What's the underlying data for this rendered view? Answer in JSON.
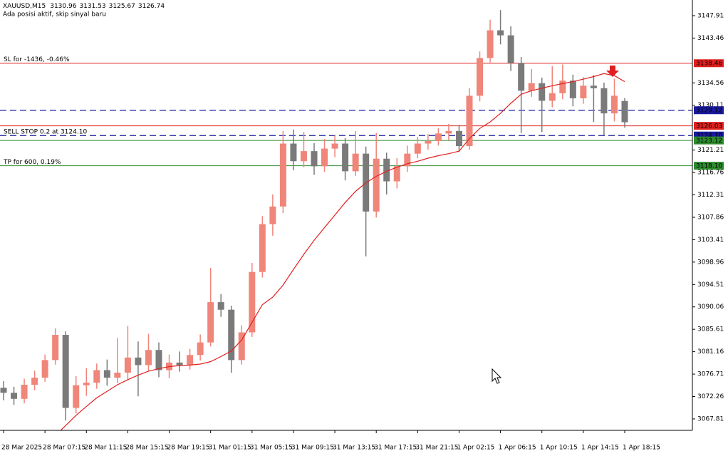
{
  "chart_data": {
    "type": "candlestick",
    "symbol": "XAUUSD,M15",
    "subtitle": "Ada posisi aktif, skip sinyal baru",
    "categories": [
      "28 Mar 2025",
      null,
      null,
      null,
      "28 Mar 07:15",
      null,
      null,
      null,
      "28 Mar 11:15",
      null,
      null,
      null,
      "28 Mar 15:15",
      null,
      null,
      null,
      "28 Mar 19:15",
      null,
      null,
      null,
      "31 Mar 01:15",
      null,
      null,
      null,
      "31 Mar 05:15",
      null,
      null,
      null,
      "31 Mar 09:15",
      null,
      null,
      null,
      "31 Mar 13:15",
      null,
      null,
      null,
      "31 Mar 17:15",
      null,
      null,
      null,
      "31 Mar 21:15",
      null,
      null,
      null,
      "1 Apr 02:15",
      null,
      null,
      null,
      "1 Apr 06:15",
      null,
      null,
      null,
      "1 Apr 10:15",
      null,
      null,
      null,
      "1 Apr 14:15",
      null,
      null,
      null,
      "1 Apr 18:15"
    ],
    "open": [
      3074.0,
      3073.0,
      3071.8,
      3074.6,
      3076.0,
      3079.5,
      3084.5,
      3070.0,
      3074.5,
      3075.0,
      3077.5,
      3076.0,
      3077.0,
      3080.0,
      3078.5,
      3081.5,
      3077.5,
      3079.0,
      3078.5,
      3080.5,
      3083.0,
      3091.0,
      3089.5,
      3079.5,
      3085.0,
      3097.0,
      3106.5,
      3110.0,
      3122.5,
      3119.0,
      3121.0,
      3118.0,
      3121.5,
      3122.5,
      3117.0,
      3120.5,
      3109.0,
      3119.5,
      3115.0,
      3118.0,
      3120.5,
      3122.5,
      3123.0,
      3124.5,
      3125.0,
      3122.0,
      3132.0,
      3139.5,
      3145.0,
      3144.0,
      3138.5,
      3133.0,
      3134.5,
      3131.0,
      3132.5,
      3135.0,
      3131.5,
      3134.0,
      3133.5,
      3128.5,
      3130.96
    ],
    "high": [
      3075.3,
      3074.2,
      3075.8,
      3077.4,
      3080.6,
      3085.8,
      3085.2,
      3076.3,
      3077.9,
      3078.8,
      3079.6,
      3083.9,
      3086.3,
      3083.2,
      3084.7,
      3083.0,
      3080.6,
      3081.2,
      3081.7,
      3084.6,
      3097.8,
      3092.6,
      3090.3,
      3086.4,
      3098.8,
      3108.1,
      3112.4,
      3125.0,
      3125.3,
      3124.8,
      3122.6,
      3123.4,
      3124.1,
      3123.6,
      3125.0,
      3121.9,
      3124.6,
      3120.7,
      3119.6,
      3122.1,
      3123.8,
      3124.4,
      3125.6,
      3126.4,
      3126.2,
      3133.5,
      3140.8,
      3147.1,
      3149.0,
      3145.8,
      3139.7,
      3137.3,
      3135.6,
      3137.9,
      3138.2,
      3136.2,
      3135.7,
      3136.1,
      3134.6,
      3135.4,
      3131.53
    ],
    "low": [
      3071.5,
      3070.6,
      3070.9,
      3073.5,
      3075.2,
      3078.6,
      3067.5,
      3068.9,
      3072.4,
      3073.8,
      3074.4,
      3074.9,
      3075.6,
      3072.3,
      3077.4,
      3076.1,
      3075.9,
      3077.2,
      3077.6,
      3079.4,
      3082.2,
      3088.1,
      3077.0,
      3078.6,
      3084.1,
      3095.9,
      3104.2,
      3108.7,
      3117.2,
      3117.8,
      3116.3,
      3116.9,
      3119.8,
      3115.2,
      3116.1,
      3100.1,
      3107.8,
      3112.4,
      3113.6,
      3116.9,
      3119.6,
      3121.3,
      3122.1,
      3123.2,
      3120.8,
      3121.3,
      3130.9,
      3138.6,
      3142.2,
      3136.9,
      3124.6,
      3131.8,
      3124.8,
      3129.7,
      3131.3,
      3129.9,
      3130.4,
      3126.8,
      3124.2,
      3126.9,
      3125.67
    ],
    "close": [
      3073.0,
      3071.8,
      3074.6,
      3076.0,
      3079.5,
      3084.5,
      3070.0,
      3074.5,
      3075.0,
      3077.5,
      3076.0,
      3077.0,
      3080.0,
      3078.5,
      3081.5,
      3077.5,
      3079.0,
      3078.5,
      3080.5,
      3083.0,
      3091.0,
      3089.5,
      3079.5,
      3085.0,
      3097.0,
      3106.5,
      3110.0,
      3122.5,
      3119.0,
      3121.0,
      3118.0,
      3121.5,
      3122.5,
      3117.0,
      3120.5,
      3109.0,
      3119.5,
      3115.0,
      3118.0,
      3120.5,
      3122.5,
      3123.0,
      3124.5,
      3125.0,
      3122.0,
      3132.0,
      3139.5,
      3145.0,
      3144.0,
      3138.5,
      3133.0,
      3134.5,
      3131.0,
      3132.5,
      3135.0,
      3131.5,
      3134.0,
      3133.5,
      3128.5,
      3132.0,
      3126.74
    ],
    "up_color": "#f0857a",
    "down_color": "#7a7a7a",
    "moving_average": {
      "color": "#e02020",
      "values": [
        null,
        null,
        null,
        null,
        null,
        3064.5,
        3066.5,
        3068.5,
        3070.3,
        3072.0,
        3073.3,
        3074.6,
        3075.6,
        3076.5,
        3077.3,
        3077.8,
        3078.2,
        3078.4,
        3078.5,
        3078.7,
        3079.2,
        3080.2,
        3081.3,
        3083.5,
        3087.0,
        3090.5,
        3092.0,
        3094.4,
        3097.5,
        3100.5,
        3103.3,
        3105.8,
        3108.3,
        3110.8,
        3113.0,
        3114.7,
        3116.0,
        3117.0,
        3117.8,
        3118.5,
        3119.0,
        3119.6,
        3120.1,
        3120.5,
        3121.0,
        3123.5,
        3125.5,
        3126.8,
        3128.5,
        3130.5,
        3132.3,
        3133.0,
        3133.5,
        3134.0,
        3134.4,
        3134.8,
        3135.3,
        3135.8,
        3136.4,
        3136.0,
        3134.8
      ]
    },
    "levels": [
      {
        "value": 3138.46,
        "color": "#e02020",
        "style": "solid",
        "text": "SL for -1436, -0.46%"
      },
      {
        "value": 3129.12,
        "color": "#1a1aa0",
        "style": "dashed"
      },
      {
        "value": 3126.03,
        "color": "#e02020",
        "style": "solid"
      },
      {
        "value": 3124.1,
        "label": "3124.10",
        "color": "#1a1aa0",
        "style": "dashed",
        "text": "SELL STOP 0.2 at 3124.10"
      },
      {
        "value": 3123.12,
        "color": "#2e8b2e",
        "style": "solid"
      },
      {
        "value": 3118.1,
        "label": "3118.10",
        "color": "#2e8b2e",
        "style": "solid",
        "text": "TP for 600, 0.19%"
      }
    ],
    "ylim": [
      3065.54,
      3151.02
    ],
    "yticks": [
      3147.91,
      3143.46,
      3134.56,
      3130.11,
      3121.21,
      3116.76,
      3112.31,
      3107.86,
      3103.41,
      3098.96,
      3094.51,
      3090.06,
      3085.61,
      3081.16,
      3076.71,
      3072.26,
      3067.81
    ]
  }
}
